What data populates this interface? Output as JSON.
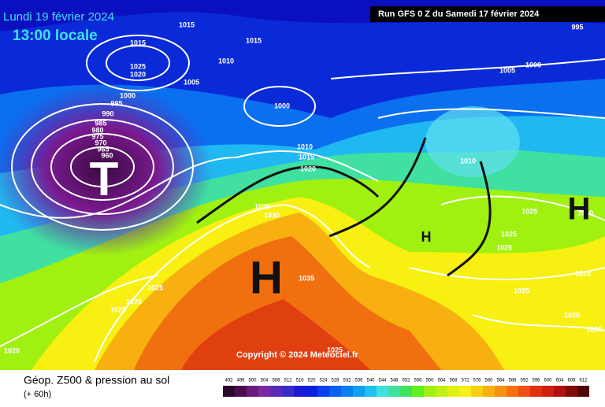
{
  "header": {
    "date": "Lundi 19 février 2024",
    "time": "13:00 locale",
    "run": "Run GFS 0 Z du Samedi 17 février 2024"
  },
  "copyright": "Copyright © 2024 Meteociel.fr",
  "footer": {
    "title": "Géop. Z500 & pression au sol",
    "lead": "(+ 60h)"
  },
  "scale": {
    "labels": [
      492,
      496,
      500,
      504,
      508,
      512,
      516,
      520,
      524,
      528,
      532,
      536,
      540,
      544,
      548,
      552,
      556,
      560,
      564,
      568,
      572,
      576,
      580,
      584,
      588,
      592,
      596,
      600,
      604,
      608,
      612
    ],
    "colors": [
      "#2a0a2a",
      "#4a0e4e",
      "#6a1a7a",
      "#7a2aa0",
      "#5a2ab8",
      "#3a2ac8",
      "#1a1ad0",
      "#0a20e0",
      "#0a40f0",
      "#0a60f0",
      "#0a80f0",
      "#10a0f0",
      "#20c0f0",
      "#40e0e0",
      "#40e0a0",
      "#40e060",
      "#60f020",
      "#a0f010",
      "#c0f010",
      "#e0f010",
      "#f8f010",
      "#f8d010",
      "#f8b010",
      "#f89010",
      "#f87010",
      "#f05010",
      "#e03010",
      "#d02010",
      "#b01010",
      "#800a0a",
      "#500505"
    ]
  },
  "isobars": [
    "1015",
    "1015",
    "1015",
    "1025",
    "1020",
    "1010",
    "1005",
    "1000",
    "995",
    "990",
    "985",
    "980",
    "975",
    "970",
    "965",
    "960",
    "1000",
    "1010",
    "1015",
    "1020",
    "1025",
    "1030",
    "1035",
    "1025",
    "1025",
    "1025",
    "1020",
    "1025",
    "995",
    "1000",
    "1005",
    "1010",
    "1025",
    "1025",
    "1025",
    "1025",
    "1025",
    "1020",
    "1020",
    "1010"
  ],
  "centers": [
    "T",
    "H",
    "H",
    "H"
  ]
}
